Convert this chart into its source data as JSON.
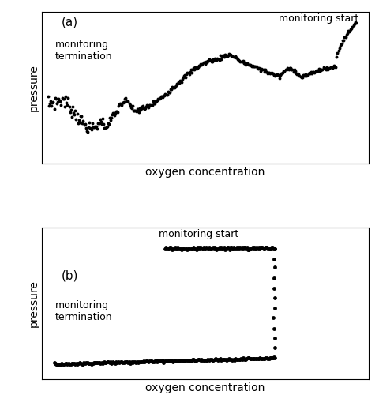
{
  "panel_a_label": "(a)",
  "panel_b_label": "(b)",
  "xlabel": "oxygen concentration",
  "ylabel": "pressure",
  "ann_a_start": "monitoring start",
  "ann_a_end": "monitoring\ntermination",
  "ann_b_start": "monitoring start",
  "ann_b_end": "monitoring\ntermination",
  "dot_color": "#000000",
  "bg_color": "#ffffff",
  "dot_size_a": 2.8,
  "dot_size_b": 3.5,
  "label_fontsize": 10,
  "ann_fontsize": 9,
  "panel_fontsize": 11,
  "figsize": [
    4.81,
    5.0
  ],
  "dpi": 100
}
